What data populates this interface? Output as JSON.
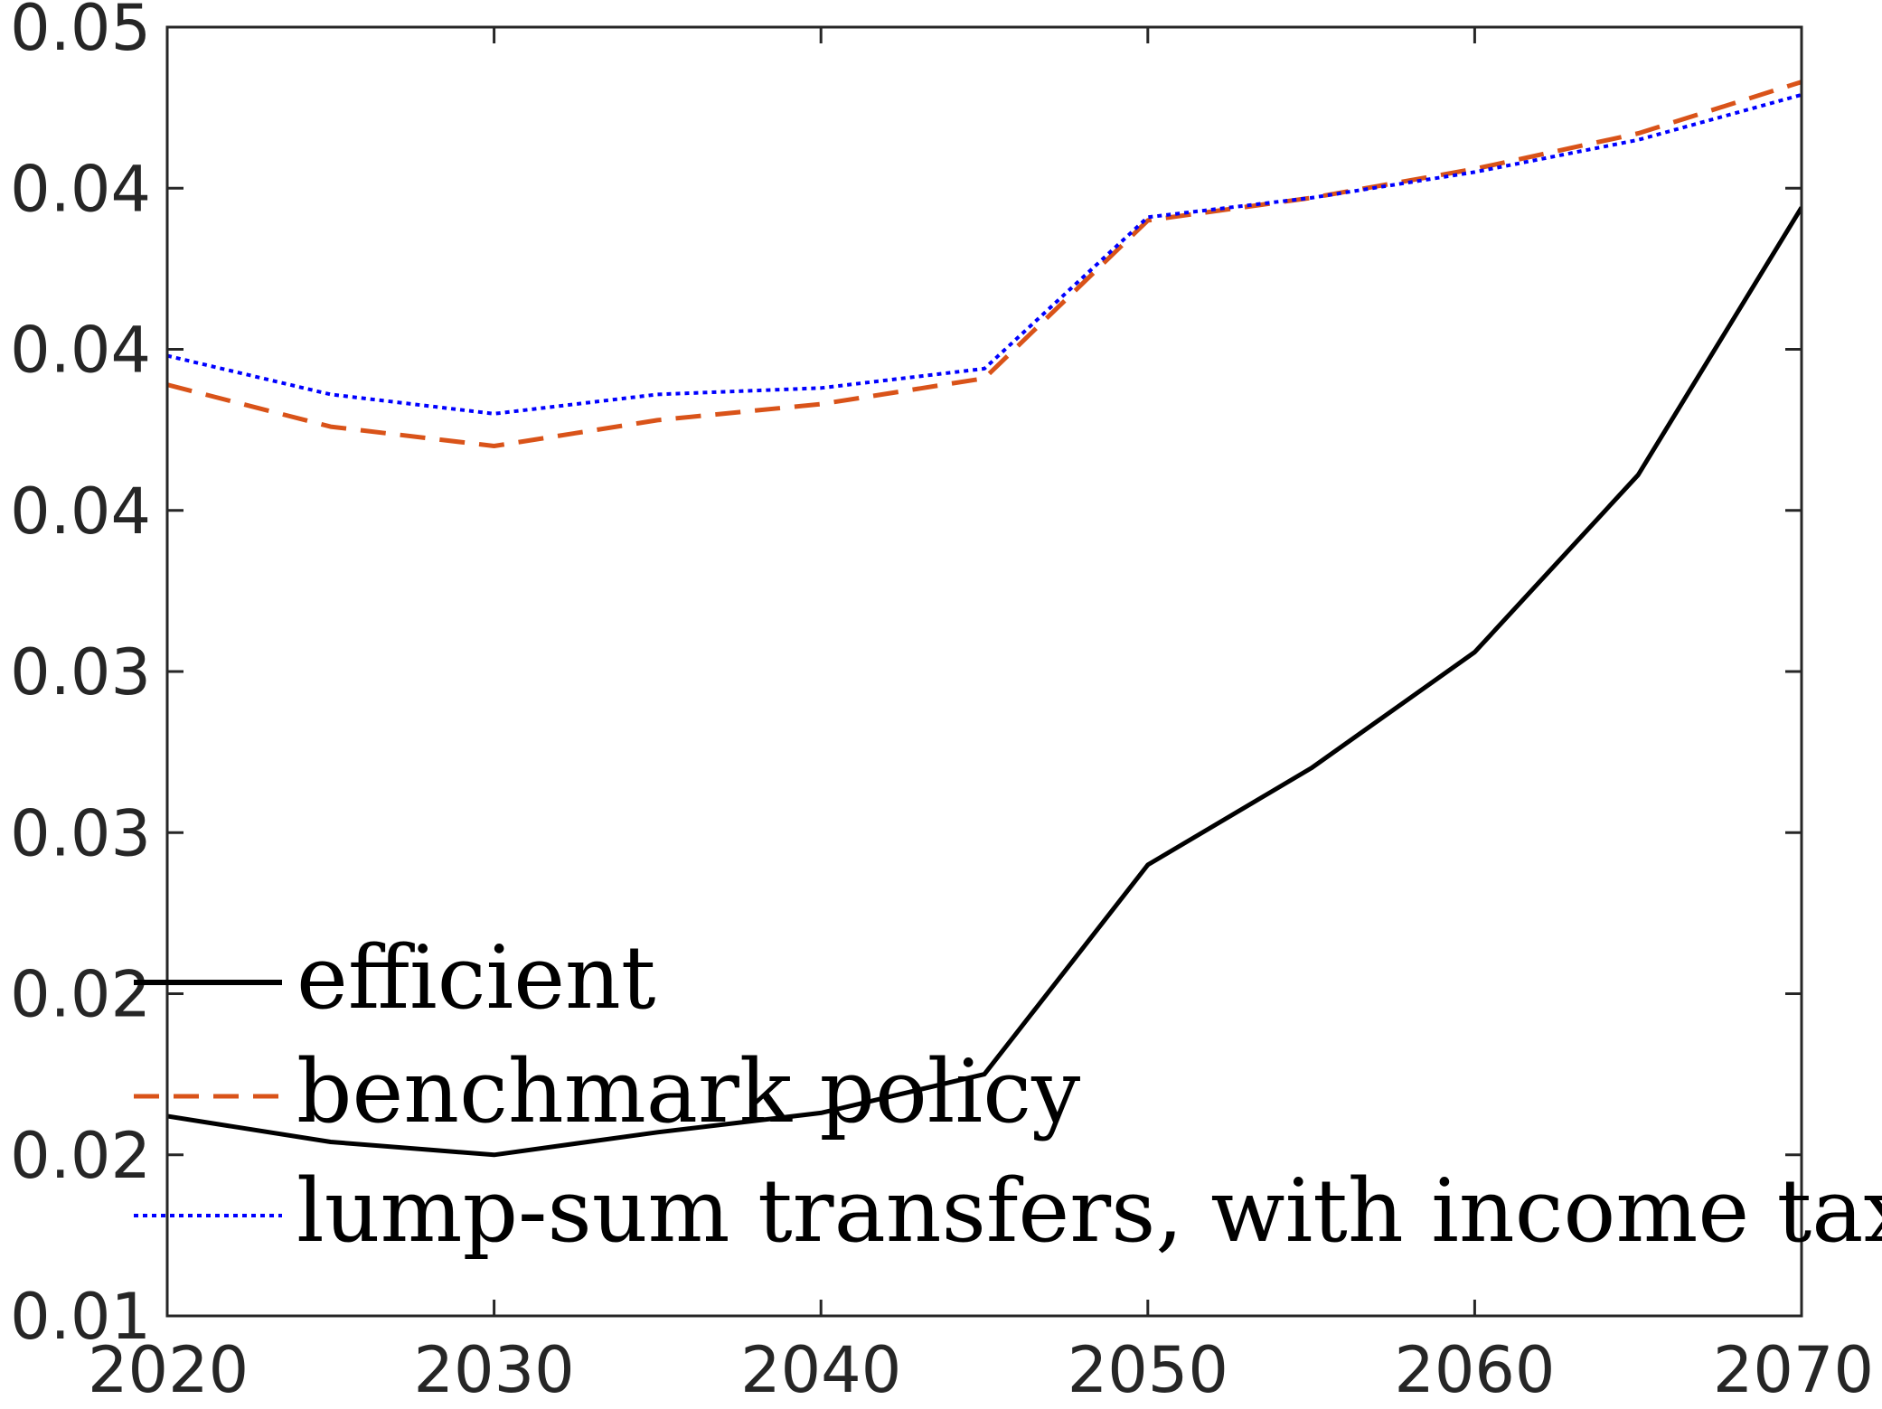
{
  "chart_data": {
    "type": "line",
    "title": "",
    "xlabel": "",
    "ylabel": "",
    "xlim": [
      2020,
      2070
    ],
    "ylim": [
      0.01,
      0.05
    ],
    "x_ticks": [
      2020,
      2030,
      2040,
      2050,
      2060,
      2070
    ],
    "x_tick_labels": [
      "2020",
      "2030",
      "2040",
      "2050",
      "2060",
      "2070"
    ],
    "y_ticks": [
      0.01,
      0.015,
      0.02,
      0.025,
      0.03,
      0.035,
      0.04,
      0.045,
      0.05
    ],
    "y_tick_labels": [
      "0.01",
      "0.02",
      "0.02",
      "0.03",
      "0.03",
      "0.04",
      "0.04",
      "0.04",
      "0.05"
    ],
    "grid": false,
    "legend_position": "bottom-left",
    "x": [
      2020,
      2025,
      2030,
      2035,
      2040,
      2045,
      2050,
      2055,
      2060,
      2065,
      2070
    ],
    "series": [
      {
        "name": "efficient",
        "color": "#000000",
        "style": "solid",
        "values": [
          0.0162,
          0.0154,
          0.015,
          0.0157,
          0.0163,
          0.0175,
          0.024,
          0.027,
          0.0306,
          0.0361,
          0.0444
        ]
      },
      {
        "name": "benchmark policy",
        "color": "#D95319",
        "style": "dashed",
        "values": [
          0.0389,
          0.0376,
          0.037,
          0.0378,
          0.0383,
          0.0391,
          0.044,
          0.0447,
          0.0456,
          0.0467,
          0.0483
        ]
      },
      {
        "name": "lump-sum transfers, with income tax",
        "color": "#0000FF",
        "style": "dotted",
        "values": [
          0.0398,
          0.0386,
          0.038,
          0.0386,
          0.0388,
          0.0394,
          0.0441,
          0.0447,
          0.0455,
          0.0465,
          0.0479
        ]
      }
    ]
  }
}
